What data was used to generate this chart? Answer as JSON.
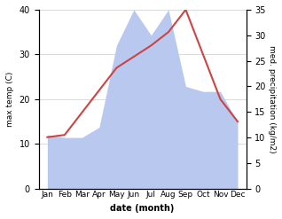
{
  "months": [
    "Jan",
    "Feb",
    "Mar",
    "Apr",
    "May",
    "Jun",
    "Jul",
    "Aug",
    "Sep",
    "Oct",
    "Nov",
    "Dec"
  ],
  "temperature": [
    11.5,
    12.0,
    17.0,
    22.0,
    27.0,
    29.5,
    32.0,
    35.0,
    40.0,
    30.0,
    20.0,
    15.0
  ],
  "precipitation_kg": [
    10.5,
    10.0,
    10.0,
    12.0,
    28.0,
    35.0,
    30.0,
    35.0,
    20.0,
    19.0,
    19.0,
    13.0
  ],
  "temp_color": "#cc4444",
  "precip_color": "#b8c8ee",
  "temp_ylim": [
    0,
    40
  ],
  "precip_ylim": [
    0,
    35
  ],
  "temp_yticks": [
    0,
    10,
    20,
    30,
    40
  ],
  "precip_yticks": [
    0,
    5,
    10,
    15,
    20,
    25,
    30,
    35
  ],
  "xlabel": "date (month)",
  "ylabel_left": "max temp (C)",
  "ylabel_right": "med. precipitation (kg/m2)",
  "bg_color": "#ffffff"
}
